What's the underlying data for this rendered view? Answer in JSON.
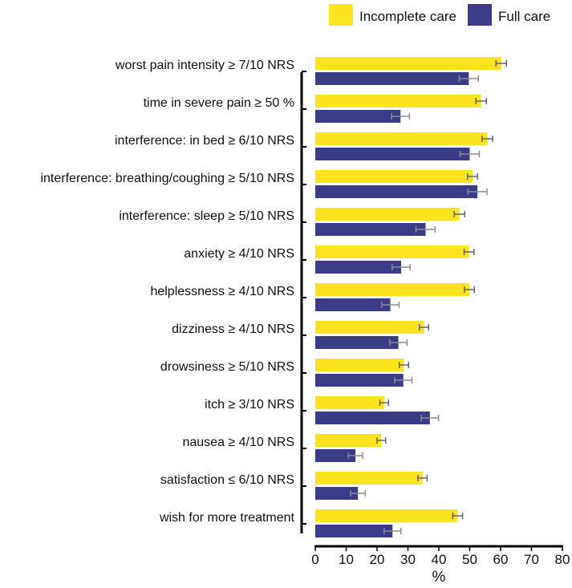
{
  "chart_data": {
    "type": "bar",
    "orientation": "horizontal",
    "title": "",
    "xlabel": "%",
    "ylabel": "",
    "xlim": [
      0,
      80
    ],
    "xticks": [
      0,
      10,
      20,
      30,
      40,
      50,
      60,
      70,
      80
    ],
    "grid": false,
    "legend_position": "top-right",
    "categories": [
      "worst pain intensity ≥ 7/10 NRS",
      "time in severe pain ≥ 50 %",
      "interference: in bed ≥ 6/10 NRS",
      "interference: breathing/coughing ≥ 5/10 NRS",
      "interference: sleep ≥ 5/10 NRS",
      "anxiety ≥ 4/10 NRS",
      "helplessness ≥ 4/10 NRS",
      "dizziness ≥ 4/10 NRS",
      "drowsiness ≥ 5/10 NRS",
      "itch ≥ 3/10 NRS",
      "nausea ≥ 4/10 NRS",
      "satisfaction ≤ 6/10 NRS",
      "wish for more treatment"
    ],
    "series": [
      {
        "name": "Incomplete care",
        "color": "#FBE31F",
        "values": [
          60.2,
          53.7,
          55.7,
          50.9,
          46.7,
          49.8,
          49.9,
          35.2,
          28.7,
          22.3,
          21.4,
          34.7,
          46.1
        ],
        "errors": [
          1.7,
          1.7,
          1.7,
          1.6,
          1.7,
          1.6,
          1.6,
          1.5,
          1.5,
          1.4,
          1.4,
          1.5,
          1.6
        ]
      },
      {
        "name": "Full care",
        "color": "#3B3C87",
        "values": [
          49.7,
          27.6,
          50.0,
          52.5,
          35.7,
          27.8,
          24.3,
          26.9,
          28.5,
          37.1,
          13.0,
          13.8,
          25.0
        ],
        "errors": [
          3.1,
          2.9,
          3.1,
          3.1,
          3.1,
          2.9,
          2.8,
          2.8,
          2.8,
          2.8,
          2.3,
          2.4,
          2.7
        ]
      }
    ]
  }
}
